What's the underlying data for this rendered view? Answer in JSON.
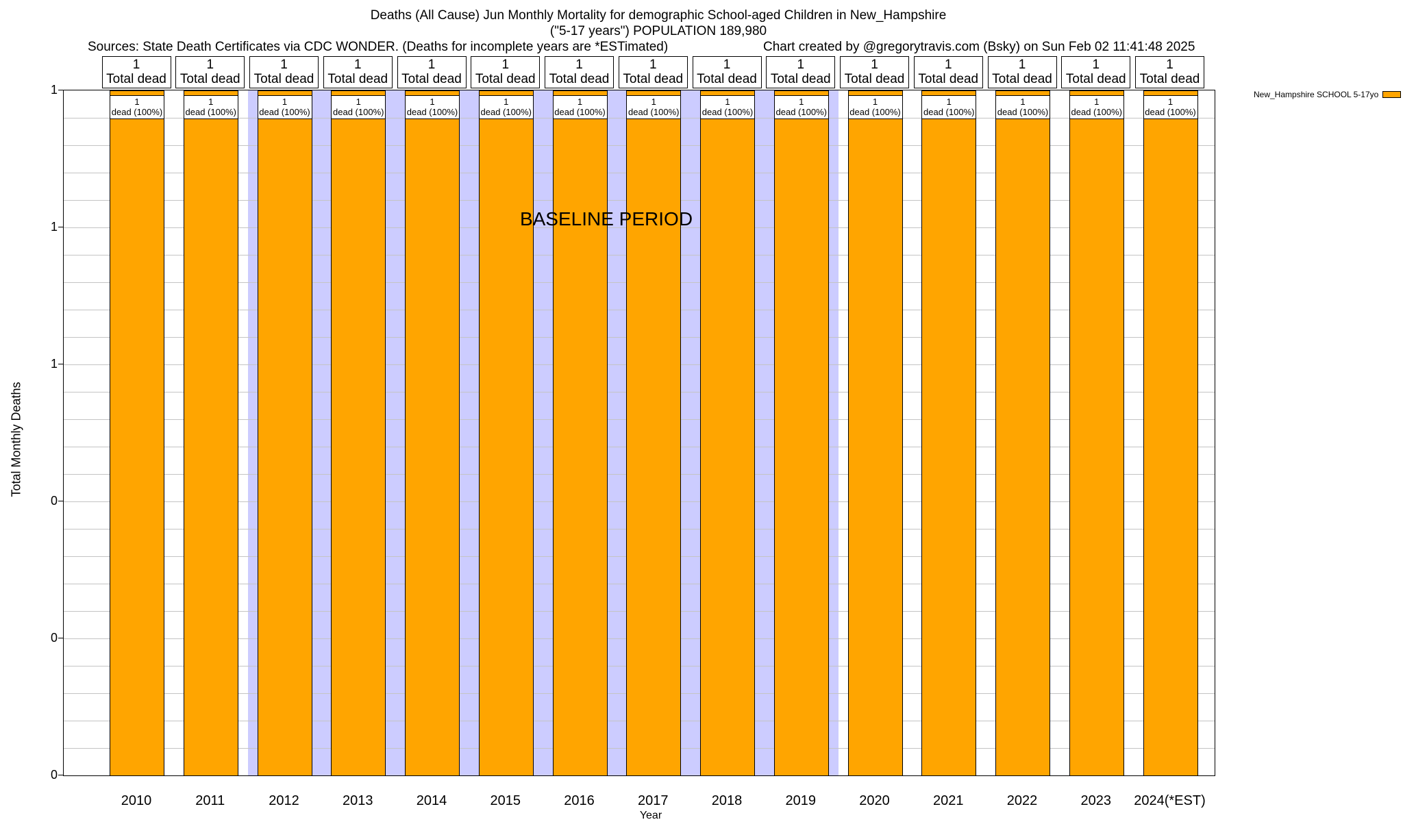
{
  "header": {
    "title_line1": "Deaths (All Cause) Jun Monthly Mortality for demographic School-aged Children in New_Hampshire",
    "title_line2": "(\"5-17 years\") POPULATION 189,980",
    "sources": "Sources: State Death Certificates via CDC WONDER. (Deaths for incomplete years are *ESTimated)",
    "credit": "Chart created by @gregorytravis.com (Bsky) on Sun Feb 02 11:41:48 2025"
  },
  "chart_data": {
    "type": "bar",
    "title": "Deaths (All Cause) Jun Monthly Mortality for demographic School-aged Children in New_Hampshire (\"5-17 years\") POPULATION 189,980",
    "xlabel": "Year",
    "ylabel": "Total Monthly Deaths",
    "ylim": [
      0,
      1
    ],
    "grid": true,
    "categories": [
      "2010",
      "2011",
      "2012",
      "2013",
      "2014",
      "2015",
      "2016",
      "2017",
      "2018",
      "2019",
      "2020",
      "2021",
      "2022",
      "2023",
      "2024(*EST)"
    ],
    "values": [
      1,
      1,
      1,
      1,
      1,
      1,
      1,
      1,
      1,
      1,
      1,
      1,
      1,
      1,
      1
    ],
    "y_ticks": [
      {
        "label": "1",
        "value": 1.0
      },
      {
        "label": "1",
        "value": 0.8
      },
      {
        "label": "1",
        "value": 0.6
      },
      {
        "label": "0",
        "value": 0.4
      },
      {
        "label": "0",
        "value": 0.2
      },
      {
        "label": "0",
        "value": 0.0
      }
    ],
    "bar_top_box": {
      "line1": "1",
      "line2": "Total dead"
    },
    "bar_inner_box": {
      "line1": "1",
      "line2": "dead (100%)"
    },
    "baseline_band": {
      "label": "BASELINE PERIOD",
      "start_year": "2012",
      "end_year": "2019",
      "color": "#ccccff"
    },
    "legend": {
      "label": "New_Hampshire SCHOOL 5-17yo",
      "color": "#ffa500",
      "position": "top-right"
    },
    "colors": {
      "bar": "#ffa500",
      "bar_border": "#000000",
      "gridline": "#c4c4c4"
    }
  }
}
